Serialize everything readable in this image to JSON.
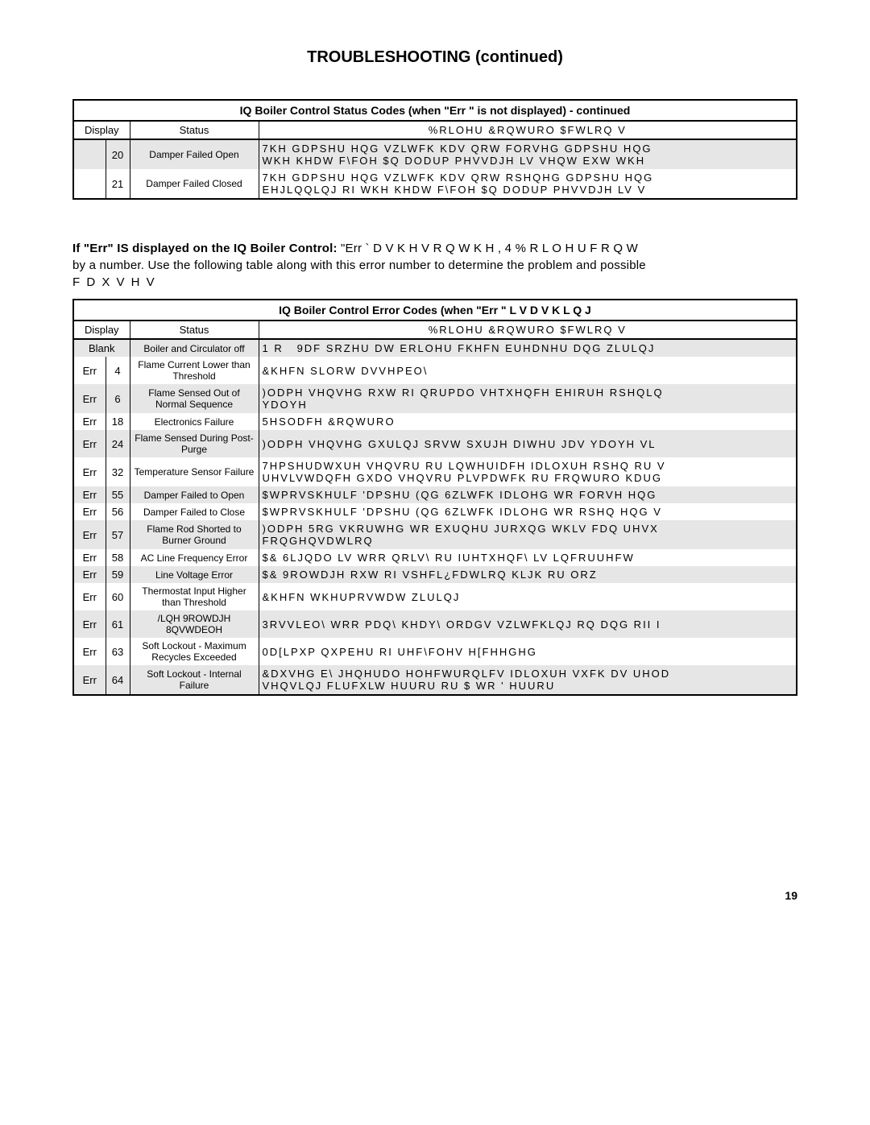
{
  "page_title": "TROUBLESHOOTING (continued)",
  "page_number": "19",
  "table1": {
    "title": "IQ Boiler Control Status Codes (when \"Err \" is not displayed) - continued",
    "head_display": "Display",
    "head_status": "Status",
    "head_action": "%RLOHU  &RQWURO $FWLRQ V",
    "rows": [
      {
        "d1": "",
        "d2": "20",
        "status": "Damper Failed Open",
        "action": "7KH GDPSHU HQG VZLWFK KDV QRW FORVHG GDPSHU HQG\nWKH KHDW F\\FOH $Q DODUP PHVVDJH LV VHQW EXW WKH",
        "shade": true
      },
      {
        "d1": "",
        "d2": "21",
        "status": "Damper Failed Closed",
        "action": "7KH GDPSHU HQG VZLWFK KDV QRW RSHQHG GDPSHU HQG\nEHJLQQLQJ RI WKH KHDW F\\FOH $Q DODUP PHVVDJH LV V",
        "shade": false
      }
    ]
  },
  "midtext": {
    "line1a": "If \"Err\"  IS displayed on the IQ Boiler Control:  ",
    "line1b": "\"Err    ` D V K H V  R Q  W K H  , 4  % R L O H U  F R Q W",
    "line2": "by a number.  Use the following table along with this error number to determine the problem and possible",
    "line3": "F D X V H V"
  },
  "table2": {
    "title": "IQ Boiler Control Error Codes (when \"Err \"  L V   D V K L Q J",
    "head_display": "Display",
    "head_status": "Status",
    "head_action": "%RLOHU  &RQWURO $FWLRQ V",
    "rows": [
      {
        "d1": "Blank",
        "d2": "",
        "status": "Boiler and Circulator off",
        "action": "1 R   9DF SRZHU DW ERLOHU FKHFN EUHDNHU DQG ZLULQJ",
        "shade": true
      },
      {
        "d1": "Err",
        "d2": "4",
        "status": "Flame Current Lower than Threshold",
        "action": "&KHFN SLORW DVVHPEO\\",
        "shade": false
      },
      {
        "d1": "Err",
        "d2": "6",
        "status": "Flame Sensed Out of Normal Sequence",
        "action": ")ODPH VHQVHG RXW RI QRUPDO VHTXHQFH EHIRUH RSHQLQ\nYDOYH",
        "shade": true
      },
      {
        "d1": "Err",
        "d2": "18",
        "status": "Electronics Failure",
        "action": "5HSODFH &RQWURO",
        "shade": false
      },
      {
        "d1": "Err",
        "d2": "24",
        "status": "Flame Sensed During Post-Purge",
        "action": ")ODPH VHQVHG GXULQJ SRVW SXUJH DIWHU JDV YDOYH VL",
        "shade": true
      },
      {
        "d1": "Err",
        "d2": "32",
        "status": "Temperature Sensor Failure",
        "action": "7HPSHUDWXUH VHQVRU RU LQWHUIDFH IDLOXUH RSHQ RU V\nUHVLVWDQFH GXDO VHQVRU PLVPDWFK RU FRQWURO KDUG",
        "shade": false
      },
      {
        "d1": "Err",
        "d2": "55",
        "status": "Damper Failed to Open",
        "action": "$WPRVSKHULF 'DPSHU (QG 6ZLWFK IDLOHG WR FORVH HQG",
        "shade": true
      },
      {
        "d1": "Err",
        "d2": "56",
        "status": "Damper Failed to Close",
        "action": "$WPRVSKHULF 'DPSHU (QG 6ZLWFK IDLOHG WR RSHQ HQG V",
        "shade": false
      },
      {
        "d1": "Err",
        "d2": "57",
        "status": "Flame Rod Shorted to Burner Ground",
        "action": ")ODPH 5RG VKRUWHG WR EXUQHU JURXQG WKLV FDQ UHVX\nFRQGHQVDWLRQ",
        "shade": true
      },
      {
        "d1": "Err",
        "d2": "58",
        "status": "AC Line Frequency Error",
        "action": "$& 6LJQDO LV WRR QRLV\\ RU IUHTXHQF\\ LV LQFRUUHFW",
        "shade": false
      },
      {
        "d1": "Err",
        "d2": "59",
        "status": "Line Voltage Error",
        "action": "$& 9ROWDJH RXW RI VSHFL¿FDWLRQ KLJK RU ORZ",
        "shade": true
      },
      {
        "d1": "Err",
        "d2": "60",
        "status": "Thermostat Input Higher than Threshold",
        "action": "&KHFN WKHUPRVWDW ZLULQJ",
        "shade": false
      },
      {
        "d1": "Err",
        "d2": "61",
        "status": "/LQH 9ROWDJH 8QVWDEOH",
        "action": "3RVVLEO\\ WRR PDQ\\ KHDY\\ ORDGV VZLWFKLQJ RQ DQG RII I",
        "shade": true
      },
      {
        "d1": "Err",
        "d2": "63",
        "status": "Soft Lockout - Maximum Recycles Exceeded",
        "action": "0D[LPXP QXPEHU RI UHF\\FOHV H[FHHGHG",
        "shade": false
      },
      {
        "d1": "Err",
        "d2": "64",
        "status": "Soft Lockout - Internal Failure",
        "action": "&DXVHG E\\ JHQHUDO HOHFWURQLFV IDLOXUH VXFK DV UHOD\nVHQVLQJ FLUFXLW HUURU RU $ WR ' HUURU",
        "shade": true
      }
    ]
  }
}
